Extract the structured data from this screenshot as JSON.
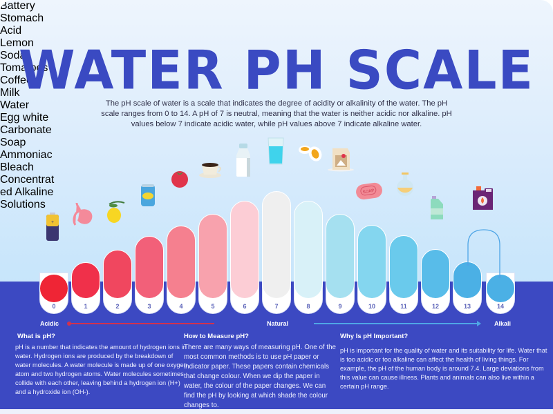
{
  "header": {
    "title": "WATER PH SCALE",
    "intro": "The pH scale of water is a scale that indicates the degree of acidity or alkalinity of the water. The pH scale ranges from 0 to 14. A pH of 7 is neutral, meaning that the water is neither acidic nor alkaline. pH values below 7 indicate acidic water, while pH values above 7 indicate alkaline water."
  },
  "colors": {
    "title": "#3a4ac2",
    "band": "#3c49c2",
    "acid_arrow": "#d0324e",
    "alkali_arrow": "#4fa6e6"
  },
  "scale": {
    "acidic_label": "Acidic",
    "natural_label": "Natural",
    "alkali_label": "Alkali",
    "levels": [
      {
        "ph": "0",
        "item": "Battery",
        "icon": "battery-icon",
        "color": "#ef2535"
      },
      {
        "ph": "1",
        "item": "Stomach Acid",
        "icon": "stomach-icon",
        "color": "#f0304a"
      },
      {
        "ph": "2",
        "item": "Lemon",
        "icon": "lemon-icon",
        "color": "#f0475f"
      },
      {
        "ph": "3",
        "item": "Soda",
        "icon": "soda-can-icon",
        "color": "#f26079"
      },
      {
        "ph": "4",
        "item": "Tomatoes",
        "icon": "tomato-icon",
        "color": "#f5808f"
      },
      {
        "ph": "5",
        "item": "Coffee",
        "icon": "coffee-cup-icon",
        "color": "#f8a2ad"
      },
      {
        "ph": "6",
        "item": "Milk",
        "icon": "milk-bottle-icon",
        "color": "#fccdd5"
      },
      {
        "ph": "7",
        "item": "Water",
        "icon": "water-glass-icon",
        "color": "#efefef"
      },
      {
        "ph": "8",
        "item": "Egg white",
        "icon": "egg-icon",
        "color": "#d8f1f8"
      },
      {
        "ph": "9",
        "item": "Carbonate",
        "icon": "carbonate-box-icon",
        "color": "#a5e0f0"
      },
      {
        "ph": "10",
        "item": "Soap",
        "icon": "soap-icon",
        "color": "#84d6ef"
      },
      {
        "ph": "11",
        "item": "Ammoniac",
        "icon": "flask-icon",
        "color": "#6acaec"
      },
      {
        "ph": "12",
        "item": "Bleach",
        "icon": "bleach-bottle-icon",
        "color": "#58bce9"
      },
      {
        "ph": "13",
        "item": "Concentrated Alkaline Solutions",
        "icon": "chemical-canister-icon",
        "color": "#4bb0e5"
      },
      {
        "ph": "14",
        "item": "",
        "icon": "",
        "color": "#4bb0e5"
      }
    ],
    "concentrated_label_lines": [
      "Concentrat",
      "ed Alkaline",
      "Solutions"
    ],
    "stomach_label_lines": [
      "Stomach",
      "Acid"
    ]
  },
  "sections": [
    {
      "title": "What is pH?",
      "body": "pH is a number that indicates the amount of hydrogen ions in water. Hydrogen ions are produced by the breakdown of water molecules. A water molecule is made up of one oxygen atom and two hydrogen atoms. Water molecules sometimes collide with each other, leaving behind a hydrogen ion (H+) and a hydroxide ion (OH-)."
    },
    {
      "title": "How to Measure pH?",
      "body": "There are many ways of measuring pH. One of the most common methods is to use pH paper or indicator paper. These papers contain chemicals that change colour. When we dip the paper in water, the colour of the paper changes. We can find the pH by looking at which shade the colour changes to."
    },
    {
      "title": "Why Is pH Important?",
      "body": "pH is important for the quality of water and its suitability for life. Water that is too acidic or too alkaline can affect the health of living things. For example, the pH of the human body is around 7.4. Large deviations from this value can cause illness. Plants and animals can also live within a certain pH range."
    }
  ]
}
